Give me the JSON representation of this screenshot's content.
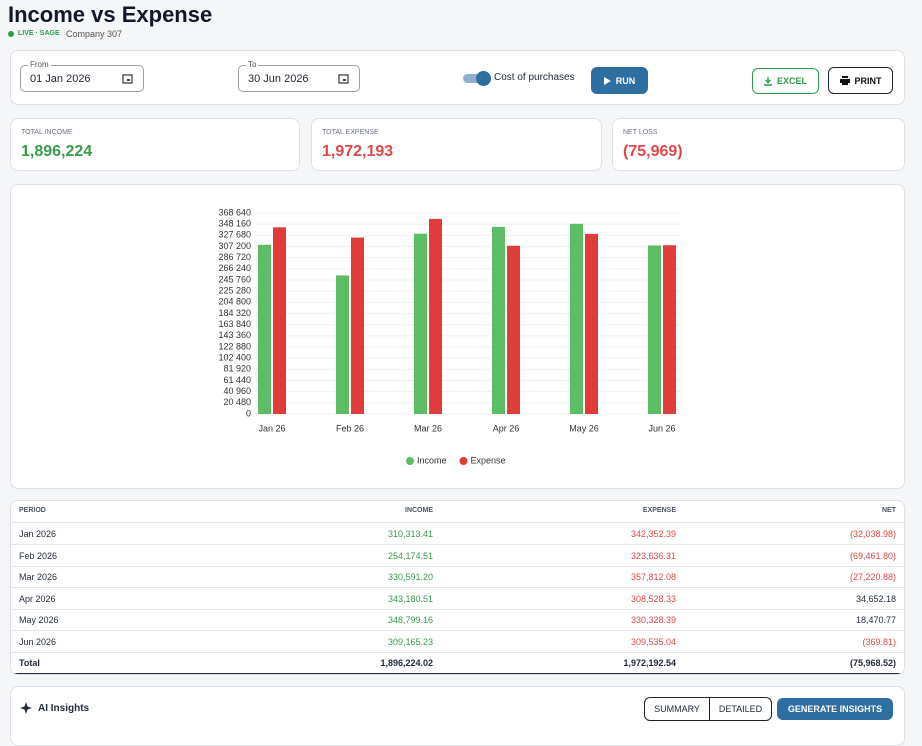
{
  "header": {
    "title": "Income vs Expense",
    "badge": "LIVE · SAGE",
    "company": "Company 307"
  },
  "controls": {
    "from_label": "From",
    "from_value": "01 Jan 2026",
    "to_label": "To",
    "to_value": "30 Jun 2026",
    "toggle_label": "Cost of purchases",
    "run": "RUN",
    "excel": "EXCEL",
    "print": "PRINT"
  },
  "summary": [
    {
      "label": "TOTAL INCOME",
      "value": "1,896,224"
    },
    {
      "label": "TOTAL EXPENSE",
      "value": "1,972,193"
    },
    {
      "label": "NET LOSS",
      "value": "(75,969)"
    }
  ],
  "chart_data": {
    "type": "bar",
    "categories": [
      "Jan 26",
      "Feb 26",
      "Mar 26",
      "Apr 26",
      "May 26",
      "Jun 26"
    ],
    "series": [
      {
        "name": "Income",
        "color": "#5cbd66",
        "values": [
          310313.41,
          254174.51,
          330591.2,
          343180.51,
          348799.16,
          309165.23
        ]
      },
      {
        "name": "Expense",
        "color": "#e03c3c",
        "values": [
          342352.39,
          323636.31,
          357812.08,
          308528.33,
          330328.39,
          309535.04
        ]
      }
    ],
    "ylim": [
      0,
      368640
    ],
    "yticks": [
      0,
      {
        "value": 20480,
        "label": "20 480"
      },
      {
        "value": 40960,
        "label": "40 960"
      },
      {
        "value": 61440,
        "label": "61 440"
      },
      {
        "value": 81920,
        "label": "81 920"
      },
      {
        "value": 102400,
        "label": "102 400"
      },
      {
        "value": 122880,
        "label": "122 880"
      },
      {
        "value": 143360,
        "label": "143 360"
      },
      {
        "value": 163840,
        "label": "163 840"
      },
      {
        "value": 184320,
        "label": "184 320"
      },
      {
        "value": 204800,
        "label": "204 800"
      },
      {
        "value": 225280,
        "label": "225 280"
      },
      {
        "value": 245760,
        "label": "245 760"
      },
      {
        "value": 266240,
        "label": "266 240"
      },
      {
        "value": 286720,
        "label": "286 720"
      },
      {
        "value": 307200,
        "label": "307 200"
      },
      {
        "value": 327680,
        "label": "327 680"
      },
      {
        "value": 348160,
        "label": "348 160"
      },
      {
        "value": 368640,
        "label": "368 640"
      }
    ],
    "grid": true,
    "legend": "bottom"
  },
  "table": {
    "columns": [
      "PERIOD",
      "INCOME",
      "EXPENSE",
      "NET"
    ],
    "rows": [
      [
        "Jan 2026",
        "310,313.41",
        "342,352.39",
        "(32,038.98)"
      ],
      [
        "Feb 2026",
        "254,174.51",
        "323,636.31",
        "(69,461.80)"
      ],
      [
        "Mar 2026",
        "330,591.20",
        "357,812.08",
        "(27,220.88)"
      ],
      [
        "Apr 2026",
        "343,180.51",
        "308,528.33",
        "34,652.18"
      ],
      [
        "May 2026",
        "348,799.16",
        "330,328.39",
        "18,470.77"
      ],
      [
        "Jun 2026",
        "309,165.23",
        "309,535.04",
        "(369.81)"
      ]
    ],
    "total": [
      "Total",
      "1,896,224.02",
      "1,972,192.54",
      "(75,968.52)"
    ]
  },
  "insights": {
    "title": "AI Insights",
    "tabs": [
      "SUMMARY",
      "DETAILED"
    ],
    "generate": "GENERATE INSIGHTS"
  }
}
